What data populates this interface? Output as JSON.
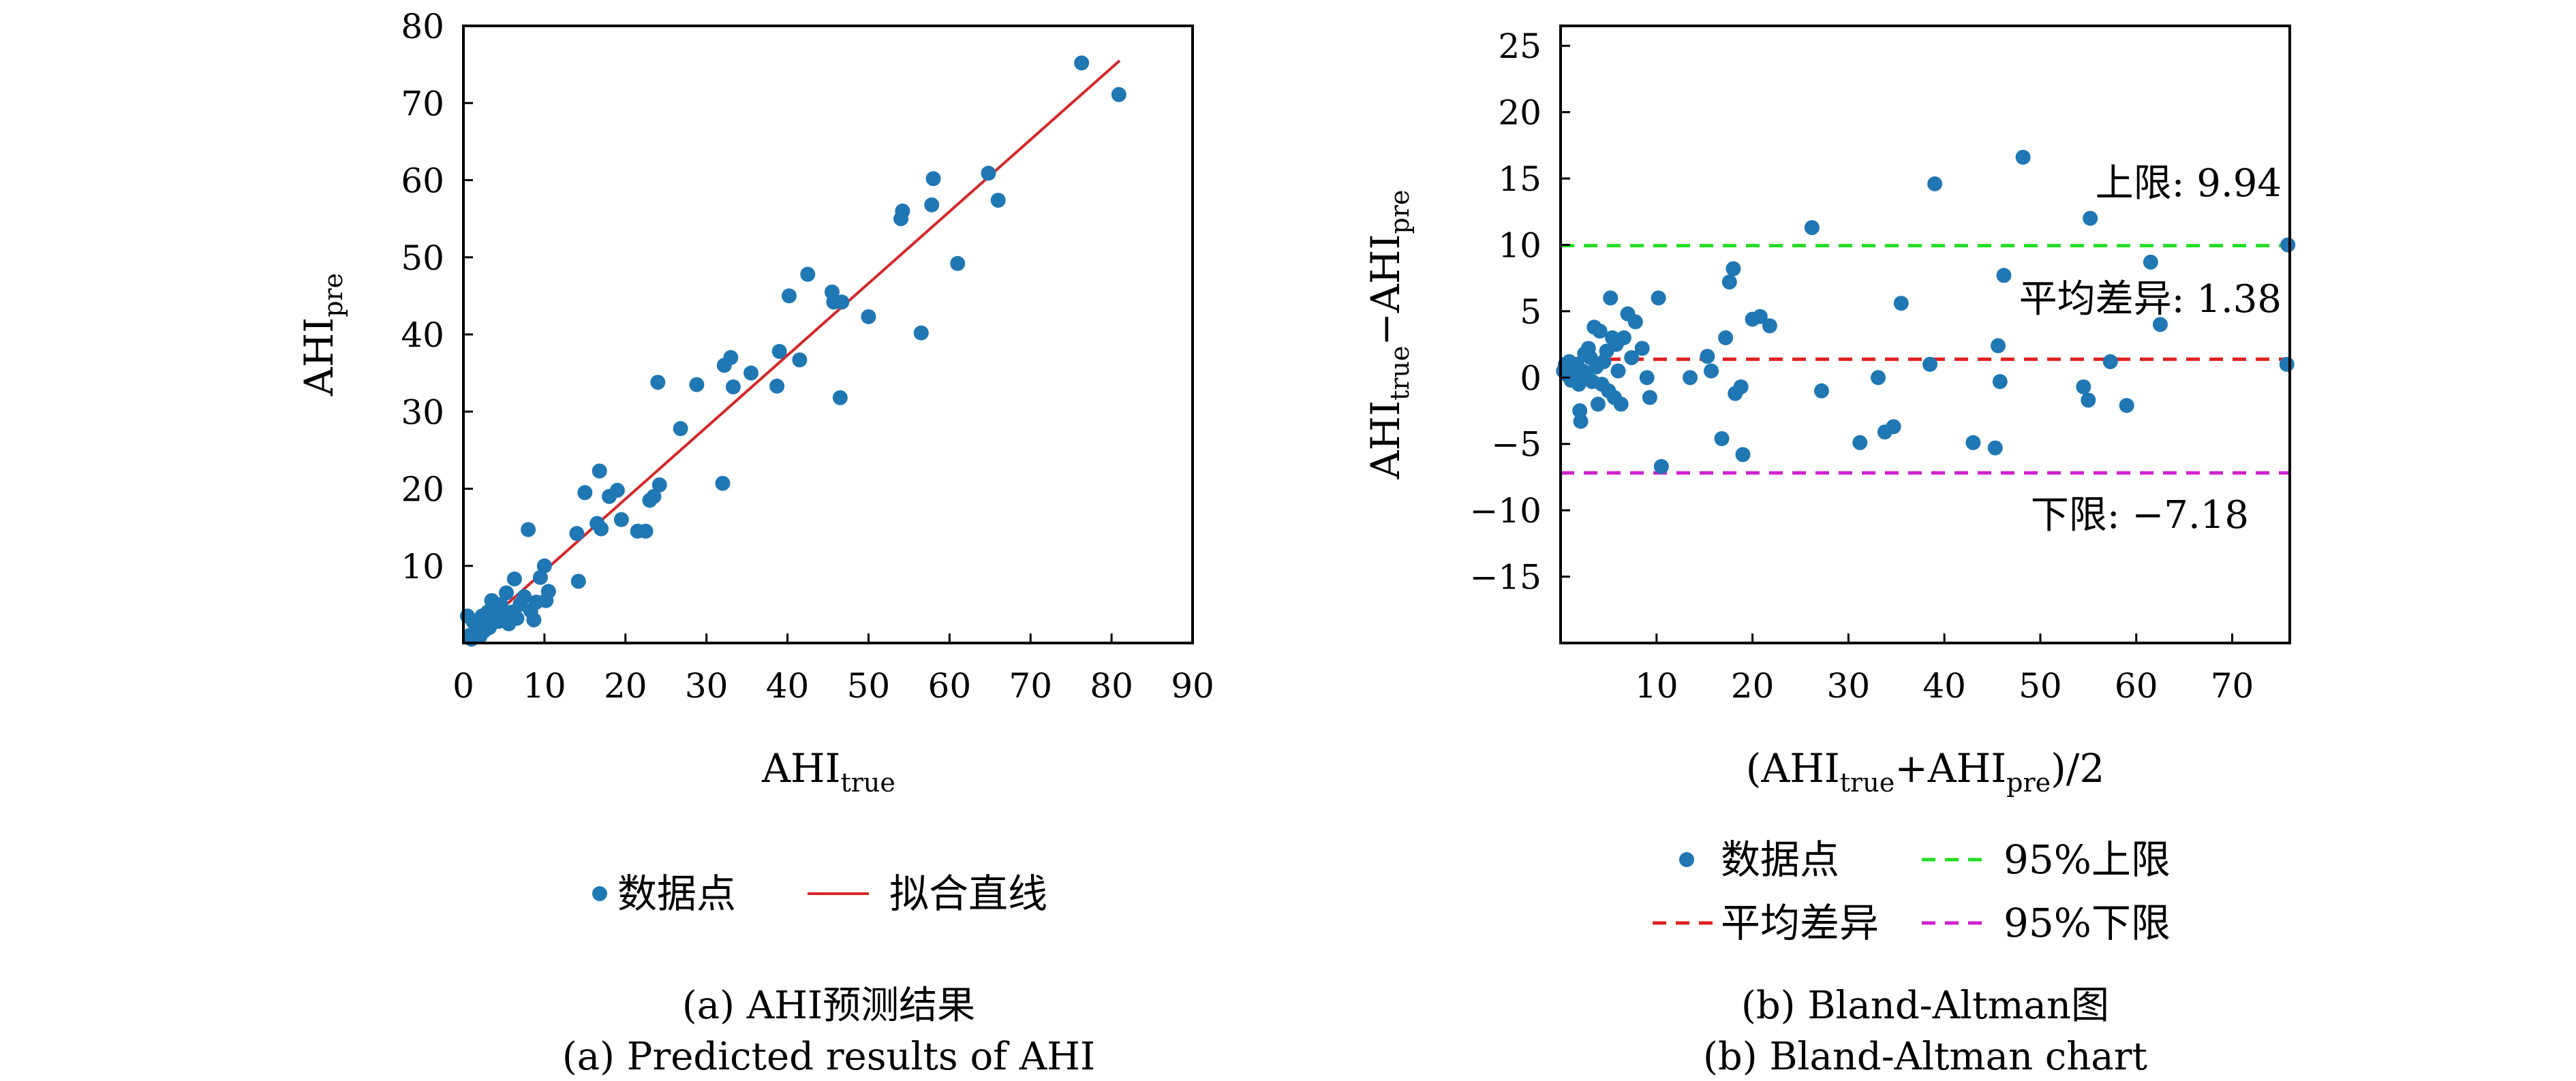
{
  "chart_data": [
    {
      "type": "scatter",
      "caption_cn": "(a) AHI预测结果",
      "caption_en": "(a) Predicted results of AHI",
      "xlabel_main": "AHI",
      "xlabel_sub": "true",
      "ylabel_main": "AHI",
      "ylabel_sub": "pre",
      "xlim": [
        0,
        90
      ],
      "ylim": [
        0,
        80
      ],
      "xticks": [
        0,
        10,
        20,
        30,
        40,
        50,
        60,
        70,
        80,
        90
      ],
      "yticks": [
        10,
        20,
        30,
        40,
        50,
        60,
        70,
        80
      ],
      "grid": false,
      "legend_position": "bottom",
      "legend": {
        "points": "数据点",
        "line": "拟合直线"
      },
      "colors": {
        "points": "#1f77b4",
        "line": "#d62728"
      },
      "fit_line": [
        [
          0.5,
          0.5
        ],
        [
          81,
          75.5
        ]
      ],
      "series": [
        {
          "name": "数据点",
          "points": [
            [
              0.5,
              3.5
            ],
            [
              0.8,
              1.0
            ],
            [
              1.0,
              0.5
            ],
            [
              1.2,
              2.8
            ],
            [
              1.5,
              1.2
            ],
            [
              1.8,
              2.0
            ],
            [
              2.0,
              0.8
            ],
            [
              2.3,
              3.5
            ],
            [
              2.5,
              1.5
            ],
            [
              2.8,
              2.5
            ],
            [
              3.0,
              4.0
            ],
            [
              3.2,
              2.0
            ],
            [
              3.5,
              5.5
            ],
            [
              3.8,
              3.0
            ],
            [
              4.0,
              4.5
            ],
            [
              4.3,
              2.8
            ],
            [
              4.6,
              5.0
            ],
            [
              5.0,
              3.5
            ],
            [
              5.3,
              6.5
            ],
            [
              5.6,
              2.5
            ],
            [
              6.0,
              4.0
            ],
            [
              6.3,
              8.3
            ],
            [
              6.6,
              3.2
            ],
            [
              7.0,
              5.0
            ],
            [
              7.5,
              6.0
            ],
            [
              8.0,
              14.7
            ],
            [
              8.3,
              4.2
            ],
            [
              8.7,
              3.0
            ],
            [
              9.0,
              5.3
            ],
            [
              9.5,
              8.5
            ],
            [
              10.0,
              10.0
            ],
            [
              10.2,
              5.5
            ],
            [
              10.5,
              6.7
            ],
            [
              14.0,
              14.2
            ],
            [
              14.2,
              8.0
            ],
            [
              15.0,
              19.5
            ],
            [
              16.5,
              15.5
            ],
            [
              16.8,
              22.3
            ],
            [
              17.0,
              14.8
            ],
            [
              18.0,
              19.0
            ],
            [
              19.0,
              19.8
            ],
            [
              19.5,
              16.0
            ],
            [
              21.5,
              14.5
            ],
            [
              22.5,
              14.5
            ],
            [
              23.0,
              18.5
            ],
            [
              23.5,
              19.0
            ],
            [
              24.0,
              33.8
            ],
            [
              24.2,
              20.5
            ],
            [
              26.8,
              27.8
            ],
            [
              28.8,
              33.5
            ],
            [
              32.0,
              20.7
            ],
            [
              32.2,
              36.0
            ],
            [
              33.0,
              37.0
            ],
            [
              33.3,
              33.2
            ],
            [
              35.5,
              35.0
            ],
            [
              38.7,
              33.3
            ],
            [
              39.0,
              37.8
            ],
            [
              40.2,
              45.0
            ],
            [
              41.5,
              36.7
            ],
            [
              42.5,
              47.8
            ],
            [
              45.5,
              45.5
            ],
            [
              45.7,
              44.2
            ],
            [
              46.5,
              31.8
            ],
            [
              46.7,
              44.2
            ],
            [
              50.0,
              42.3
            ],
            [
              54.0,
              55.0
            ],
            [
              54.2,
              56.0
            ],
            [
              56.5,
              40.2
            ],
            [
              57.8,
              56.8
            ],
            [
              58.0,
              60.2
            ],
            [
              61.0,
              49.2
            ],
            [
              64.8,
              60.9
            ],
            [
              66.0,
              57.4
            ],
            [
              76.3,
              75.2
            ],
            [
              80.9,
              71.1
            ]
          ]
        }
      ]
    },
    {
      "type": "scatter",
      "caption_cn": "(b) Bland-Altman图",
      "caption_en": "(b) Bland-Altman chart",
      "xlabel_main": "(AHI",
      "xlabel_sub1": "true",
      "xlabel_mid": "+AHI",
      "xlabel_sub2": "pre",
      "xlabel_end": ")/2",
      "ylabel_main1": "AHI",
      "ylabel_sub1": "true",
      "ylabel_mid": "−AHI",
      "ylabel_sub2": "pre",
      "xlim": [
        0,
        76
      ],
      "ylim": [
        -20,
        26.5
      ],
      "xticks": [
        10,
        20,
        30,
        40,
        50,
        60,
        70
      ],
      "yticks": [
        -15,
        -10,
        -5,
        0,
        5,
        10,
        15,
        20,
        25
      ],
      "ytick_labels": [
        "−15",
        "−10",
        "−5",
        "0",
        "5",
        "10",
        "15",
        "20",
        "25"
      ],
      "grid": false,
      "upper_limit": 9.94,
      "mean_diff": 1.38,
      "lower_limit": -7.18,
      "annotations": {
        "upper": "上限: 9.94",
        "mean": "平均差异: 1.38",
        "lower": "下限: −7.18"
      },
      "legend_position": "bottom",
      "legend": {
        "points": "数据点",
        "upper": "95%上限",
        "mean": "平均差异",
        "lower": "95%下限"
      },
      "colors": {
        "points": "#1f77b4",
        "upper": "#22dd22",
        "mean": "#e02020",
        "lower": "#d020d0"
      },
      "series": [
        {
          "name": "数据点",
          "points": [
            [
              0.3,
              0.5
            ],
            [
              0.5,
              1.0
            ],
            [
              0.7,
              0.2
            ],
            [
              0.9,
              1.2
            ],
            [
              1.1,
              -0.2
            ],
            [
              1.3,
              0.8
            ],
            [
              1.5,
              0.3
            ],
            [
              1.7,
              1.0
            ],
            [
              1.9,
              -0.5
            ],
            [
              2.0,
              -2.5
            ],
            [
              2.1,
              -3.3
            ],
            [
              2.3,
              0.5
            ],
            [
              2.5,
              1.8
            ],
            [
              2.7,
              0.0
            ],
            [
              2.9,
              2.2
            ],
            [
              3.1,
              1.5
            ],
            [
              3.3,
              -0.3
            ],
            [
              3.5,
              3.8
            ],
            [
              3.7,
              0.8
            ],
            [
              3.9,
              -2.0
            ],
            [
              4.1,
              3.5
            ],
            [
              4.3,
              -0.5
            ],
            [
              4.5,
              1.2
            ],
            [
              4.8,
              2.0
            ],
            [
              5.0,
              -1.0
            ],
            [
              5.2,
              6.0
            ],
            [
              5.4,
              3.0
            ],
            [
              5.6,
              -1.5
            ],
            [
              5.8,
              2.5
            ],
            [
              6.0,
              0.5
            ],
            [
              6.3,
              -2.0
            ],
            [
              6.6,
              3.0
            ],
            [
              7.0,
              4.8
            ],
            [
              7.4,
              1.5
            ],
            [
              7.8,
              4.2
            ],
            [
              8.5,
              2.2
            ],
            [
              9.0,
              0.0
            ],
            [
              9.3,
              -1.5
            ],
            [
              10.2,
              6.0
            ],
            [
              10.5,
              -6.7
            ],
            [
              13.5,
              0.0
            ],
            [
              15.3,
              1.6
            ],
            [
              15.7,
              0.5
            ],
            [
              16.8,
              -4.6
            ],
            [
              17.2,
              3.0
            ],
            [
              17.6,
              7.2
            ],
            [
              18.0,
              8.2
            ],
            [
              18.2,
              -1.2
            ],
            [
              18.8,
              -0.7
            ],
            [
              19.0,
              -5.8
            ],
            [
              20.0,
              4.4
            ],
            [
              20.8,
              4.6
            ],
            [
              21.8,
              3.9
            ],
            [
              26.2,
              11.3
            ],
            [
              27.2,
              -1.0
            ],
            [
              31.2,
              -4.9
            ],
            [
              33.1,
              0.0
            ],
            [
              33.8,
              -4.1
            ],
            [
              34.7,
              -3.7
            ],
            [
              35.5,
              5.6
            ],
            [
              38.5,
              1.0
            ],
            [
              39.0,
              14.6
            ],
            [
              43.0,
              -4.9
            ],
            [
              45.3,
              -5.3
            ],
            [
              45.6,
              2.4
            ],
            [
              45.8,
              -0.3
            ],
            [
              46.2,
              7.7
            ],
            [
              48.2,
              16.6
            ],
            [
              54.5,
              -0.7
            ],
            [
              55.0,
              -1.7
            ],
            [
              55.2,
              12.0
            ],
            [
              57.3,
              1.2
            ],
            [
              59.0,
              -2.1
            ],
            [
              61.5,
              8.7
            ],
            [
              62.5,
              4.0
            ],
            [
              75.8,
              10.0
            ],
            [
              75.7,
              1.0
            ]
          ]
        }
      ]
    }
  ]
}
